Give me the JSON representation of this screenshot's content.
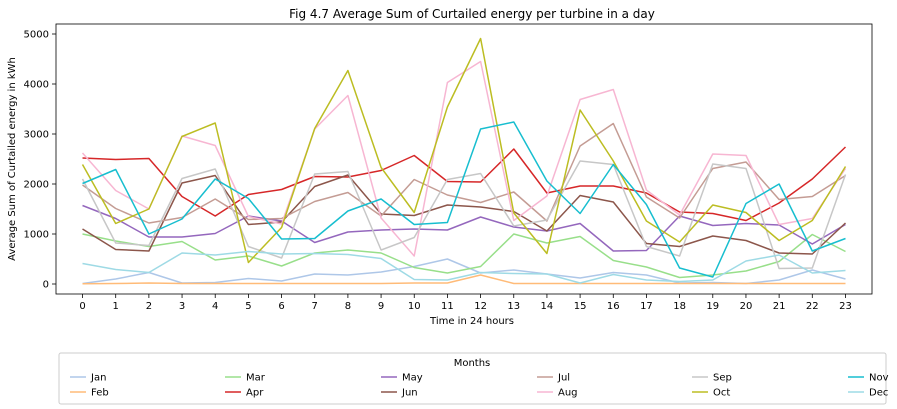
{
  "chart_data": {
    "type": "line",
    "title": "Fig 4.7 Average Sum of Curtailed energy per turbine in a day",
    "xlabel": "Time in 24 hours",
    "ylabel": "Average Sum of Curtailed energy in kWh",
    "x": [
      0,
      1,
      2,
      3,
      4,
      5,
      6,
      7,
      8,
      9,
      10,
      11,
      12,
      13,
      14,
      15,
      16,
      17,
      18,
      19,
      20,
      21,
      22,
      23
    ],
    "xlim": [
      -0.8,
      23.8
    ],
    "ylim": [
      -200,
      5200
    ],
    "yticks": [
      0,
      1000,
      2000,
      3000,
      4000,
      5000
    ],
    "grid": false,
    "legend": {
      "title": "Months",
      "placement": "bottom-center",
      "columns": 6
    },
    "series": [
      {
        "name": "Jan",
        "color": "#aec7e8",
        "values": [
          10,
          100,
          230,
          20,
          30,
          110,
          60,
          200,
          180,
          240,
          350,
          500,
          220,
          280,
          200,
          120,
          230,
          180,
          20,
          30,
          10,
          80,
          280,
          100
        ]
      },
      {
        "name": "Feb",
        "color": "#ffbb78",
        "values": [
          5,
          10,
          20,
          10,
          10,
          10,
          10,
          10,
          10,
          10,
          20,
          20,
          180,
          10,
          10,
          10,
          10,
          10,
          10,
          10,
          10,
          10,
          10,
          10
        ]
      },
      {
        "name": "Mar",
        "color": "#98df8a",
        "values": [
          1000,
          860,
          750,
          850,
          480,
          560,
          360,
          620,
          680,
          620,
          330,
          220,
          350,
          1000,
          820,
          950,
          470,
          340,
          130,
          180,
          260,
          450,
          990,
          650
        ]
      },
      {
        "name": "Apr",
        "color": "#d62728",
        "values": [
          2520,
          2490,
          2510,
          1750,
          1360,
          1790,
          1890,
          2150,
          2140,
          2270,
          2570,
          2050,
          2040,
          2700,
          1820,
          1960,
          1960,
          1820,
          1440,
          1410,
          1270,
          1620,
          2100,
          2740
        ]
      },
      {
        "name": "May",
        "color": "#9467bd",
        "values": [
          1570,
          1310,
          940,
          940,
          1010,
          1360,
          1260,
          830,
          1040,
          1080,
          1100,
          1080,
          1340,
          1140,
          1060,
          1210,
          660,
          670,
          1360,
          1170,
          1210,
          1180,
          800,
          1190
        ]
      },
      {
        "name": "Jun",
        "color": "#8c564b",
        "values": [
          1100,
          690,
          660,
          2020,
          2170,
          1190,
          1240,
          1950,
          2180,
          1400,
          1370,
          1580,
          1540,
          1450,
          1060,
          1770,
          1640,
          810,
          750,
          960,
          870,
          620,
          600,
          1220
        ]
      },
      {
        "name": "Jul",
        "color": "#c49c94",
        "values": [
          1980,
          1510,
          1220,
          1330,
          1700,
          1290,
          1310,
          1650,
          1830,
          1360,
          2090,
          1780,
          1630,
          1840,
          1260,
          2760,
          3210,
          1740,
          1320,
          2310,
          2440,
          1690,
          1750,
          2170
        ]
      },
      {
        "name": "Aug",
        "color": "#f7b6d2",
        "values": [
          2620,
          1870,
          1500,
          2960,
          2770,
          1350,
          1200,
          3100,
          3770,
          1320,
          560,
          4030,
          4450,
          1270,
          1760,
          3690,
          3890,
          1880,
          1380,
          2600,
          2570,
          1190,
          1310,
          2310
        ]
      },
      {
        "name": "Sep",
        "color": "#c7c7c7",
        "values": [
          2100,
          820,
          770,
          2110,
          2300,
          750,
          520,
          2200,
          2250,
          680,
          930,
          2090,
          2210,
          1160,
          1280,
          2460,
          2390,
          750,
          560,
          2400,
          2310,
          310,
          320,
          2190
        ]
      },
      {
        "name": "Oct",
        "color": "#bcbd22",
        "values": [
          2390,
          1210,
          1500,
          2950,
          3220,
          430,
          1130,
          3110,
          4270,
          2330,
          1430,
          3540,
          4910,
          1420,
          610,
          3480,
          2460,
          1260,
          840,
          1580,
          1430,
          870,
          1270,
          2350
        ]
      },
      {
        "name": "Nov",
        "color": "#17becf",
        "values": [
          2010,
          2290,
          1000,
          1300,
          2100,
          1710,
          900,
          910,
          1460,
          1700,
          1190,
          1230,
          3100,
          3240,
          2060,
          1410,
          2390,
          1590,
          320,
          140,
          1610,
          2000,
          660,
          910
        ]
      },
      {
        "name": "Dec",
        "color": "#9edae5",
        "values": [
          410,
          290,
          230,
          620,
          580,
          650,
          600,
          610,
          590,
          510,
          90,
          80,
          230,
          210,
          200,
          20,
          190,
          80,
          50,
          80,
          460,
          580,
          220,
          270
        ]
      }
    ]
  }
}
